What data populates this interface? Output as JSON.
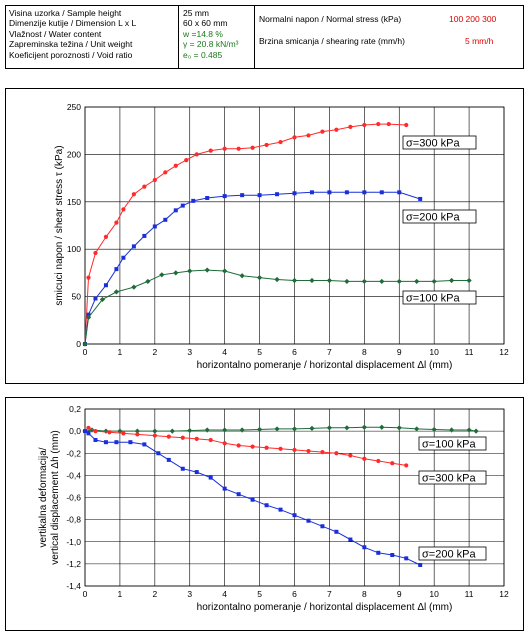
{
  "header": {
    "col1": [
      "Visina uzorka / Sample height",
      "Dimenzije kutije / Dimension L x L",
      "Vlažnost / Water content",
      "Zapreminska težina / Unit weight",
      "Koeficijent poroznosti / Void ratio"
    ],
    "col2": [
      "25 mm",
      "60 x 60 mm",
      "w =14.8 %",
      "γ = 20.8 kN/m³",
      "e₀ = 0.485"
    ],
    "normal_stress_label": "Normalni napon / Normal stress (kPa)",
    "normal_stress_values": "100   200   300",
    "shearing_rate_label": "Brzina smicanja / shearing rate  (mm/h)",
    "shearing_rate_value": "5  mm/h"
  },
  "colors": {
    "red": "#ff2a2a",
    "blue": "#1a2fd9",
    "green": "#1f6b3a",
    "grid": "#000000"
  },
  "chart_data": [
    {
      "type": "line",
      "xlabel": "horizontalno pomeranje / horizontal displacement  Δl (mm)",
      "ylabel": "smicuci napon / shear stress  τ (kPa)",
      "xlim": [
        0,
        12
      ],
      "ylim": [
        0,
        250
      ],
      "xticks": [
        "0",
        "1",
        "2",
        "3",
        "4",
        "5",
        "6",
        "7",
        "8",
        "9",
        "10",
        "11",
        "12"
      ],
      "yticks": [
        "0",
        "50",
        "100",
        "150",
        "200",
        "250"
      ],
      "grid": true,
      "series": [
        {
          "name": "σ=300 kPa",
          "color": "#ff2a2a",
          "marker": "circle",
          "x": [
            0,
            0.1,
            0.3,
            0.6,
            0.9,
            1.1,
            1.4,
            1.7,
            2.0,
            2.3,
            2.6,
            2.9,
            3.2,
            3.6,
            4.0,
            4.4,
            4.8,
            5.2,
            5.6,
            6.0,
            6.4,
            6.8,
            7.2,
            7.6,
            8.0,
            8.4,
            8.7,
            9.2
          ],
          "y": [
            0,
            70,
            96,
            113,
            128,
            142,
            158,
            166,
            173,
            181,
            188,
            194,
            200,
            204,
            206,
            206,
            207,
            210,
            213,
            218,
            220,
            224,
            226,
            229,
            231,
            232,
            232,
            231
          ]
        },
        {
          "name": "σ=200 kPa",
          "color": "#1a2fd9",
          "marker": "square",
          "x": [
            0,
            0.1,
            0.3,
            0.6,
            0.9,
            1.1,
            1.4,
            1.7,
            2.0,
            2.3,
            2.6,
            2.8,
            3.1,
            3.5,
            4.0,
            4.5,
            5.0,
            5.5,
            6.0,
            6.5,
            7.0,
            7.5,
            8.0,
            8.5,
            9.0,
            9.6
          ],
          "y": [
            0,
            31,
            48,
            62,
            79,
            91,
            103,
            114,
            124,
            131,
            141,
            146,
            151,
            154,
            156,
            157,
            157,
            158,
            159,
            160,
            160,
            160,
            160,
            160,
            160,
            153
          ]
        },
        {
          "name": "σ=100 kPa",
          "color": "#1f6b3a",
          "marker": "diamond",
          "x": [
            0,
            0.1,
            0.5,
            0.9,
            1.4,
            1.8,
            2.2,
            2.6,
            3.0,
            3.5,
            4.0,
            4.5,
            5.0,
            5.5,
            6.0,
            6.5,
            7.0,
            7.5,
            8.0,
            8.5,
            9.0,
            9.5,
            10.0,
            10.5,
            11.0
          ],
          "y": [
            0,
            28,
            47,
            55,
            60,
            66,
            73,
            75,
            77,
            78,
            77,
            72,
            70,
            68,
            67,
            67,
            67,
            66,
            66,
            66,
            66,
            66,
            66,
            67,
            67
          ]
        }
      ],
      "annotations": [
        "σ=300 kPa",
        "σ=200 kPa",
        "σ=100 kPa"
      ]
    },
    {
      "type": "line",
      "xlabel": "horizontalno pomeranje / horizontal displacement  Δl (mm)",
      "ylabel": "vertikalna deformacija/\nvertical displacement  Δh (mm)",
      "xlim": [
        0,
        12
      ],
      "ylim": [
        -1.4,
        0.2
      ],
      "xticks": [
        "0",
        "1",
        "2",
        "3",
        "4",
        "5",
        "6",
        "7",
        "8",
        "9",
        "10",
        "11",
        "12"
      ],
      "yticks": [
        "0,2",
        "0,0",
        "-0,2",
        "-0,4",
        "-0,6",
        "-0,8",
        "-1,0",
        "-1,2",
        "-1,4"
      ],
      "grid": true,
      "series": [
        {
          "name": "σ=100 kPa",
          "color": "#1f6b3a",
          "marker": "diamond",
          "x": [
            0,
            0.2,
            0.6,
            1.0,
            1.5,
            2.0,
            2.5,
            3.0,
            3.5,
            4.0,
            4.5,
            5.0,
            5.5,
            6.0,
            6.5,
            7.0,
            7.5,
            8.0,
            8.5,
            9.0,
            9.5,
            10.0,
            10.5,
            11.0,
            11.2
          ],
          "y": [
            0,
            0.01,
            0.0,
            0.0,
            0.0,
            0.0,
            0.0,
            0.005,
            0.01,
            0.01,
            0.01,
            0.015,
            0.02,
            0.02,
            0.025,
            0.03,
            0.03,
            0.035,
            0.035,
            0.03,
            0.02,
            0.015,
            0.01,
            0.01,
            0.0
          ]
        },
        {
          "name": "σ=300 kPa",
          "color": "#ff2a2a",
          "marker": "circle",
          "x": [
            0,
            0.1,
            0.3,
            0.7,
            1.1,
            1.5,
            2.0,
            2.4,
            2.8,
            3.2,
            3.6,
            4.0,
            4.4,
            4.8,
            5.2,
            5.6,
            6.0,
            6.4,
            6.8,
            7.2,
            7.6,
            8.0,
            8.4,
            8.8,
            9.2
          ],
          "y": [
            0,
            0.03,
            0.0,
            -0.01,
            -0.02,
            -0.03,
            -0.04,
            -0.05,
            -0.06,
            -0.07,
            -0.08,
            -0.11,
            -0.13,
            -0.14,
            -0.15,
            -0.16,
            -0.17,
            -0.18,
            -0.19,
            -0.2,
            -0.22,
            -0.25,
            -0.27,
            -0.29,
            -0.31
          ]
        },
        {
          "name": "σ=200 kPa",
          "color": "#1a2fd9",
          "marker": "square",
          "x": [
            0,
            0.1,
            0.3,
            0.6,
            0.9,
            1.3,
            1.7,
            2.1,
            2.4,
            2.8,
            3.2,
            3.6,
            4.0,
            4.4,
            4.8,
            5.2,
            5.6,
            6.0,
            6.4,
            6.8,
            7.2,
            7.6,
            8.0,
            8.4,
            8.8,
            9.2,
            9.6
          ],
          "y": [
            0,
            -0.02,
            -0.08,
            -0.1,
            -0.1,
            -0.1,
            -0.12,
            -0.2,
            -0.26,
            -0.34,
            -0.37,
            -0.42,
            -0.52,
            -0.57,
            -0.62,
            -0.67,
            -0.71,
            -0.76,
            -0.81,
            -0.86,
            -0.91,
            -0.98,
            -1.05,
            -1.1,
            -1.12,
            -1.15,
            -1.21
          ]
        }
      ],
      "annotations": [
        "σ=100 kPa",
        "σ=300 kPa",
        "σ=200 kPa"
      ]
    }
  ]
}
